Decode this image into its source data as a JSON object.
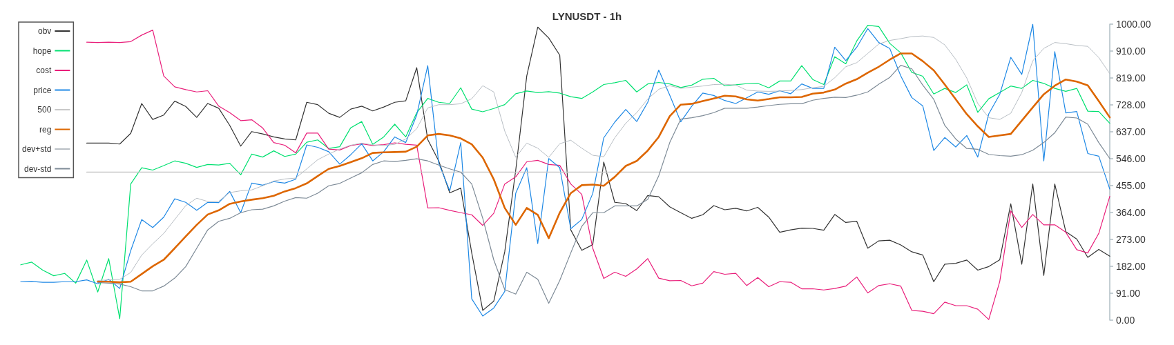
{
  "chart_data": {
    "type": "line",
    "title": "LYNUSDT - 1h",
    "categories": [
      null,
      null,
      null,
      null,
      null,
      null,
      null,
      null,
      null,
      null,
      null,
      null,
      null,
      null,
      null,
      null,
      null,
      null,
      null,
      null,
      null,
      null,
      null,
      null,
      null,
      null,
      null,
      null,
      null,
      null,
      null,
      null,
      null,
      null,
      null,
      null,
      null,
      null,
      null,
      null,
      null,
      null,
      null,
      null,
      null,
      null,
      null,
      null,
      null,
      null,
      null,
      null,
      null,
      null,
      null,
      null,
      null,
      null,
      null,
      null,
      null,
      null,
      null,
      null,
      null,
      null,
      null,
      null,
      null,
      null,
      null,
      null,
      null,
      null,
      null,
      null,
      null,
      null,
      null,
      null,
      null,
      null,
      null,
      null,
      null,
      null,
      null,
      null,
      null,
      null,
      null,
      null,
      null,
      null,
      null,
      null,
      null,
      null,
      null,
      null
    ],
    "series": [
      {
        "name": "obv",
        "color": "#333333",
        "values": [
          null,
          null,
          null,
          null,
          null,
          null,
          598,
          598,
          598,
          595,
          631,
          732,
          678,
          693,
          740,
          722,
          685,
          732,
          716,
          658,
          588,
          637,
          629,
          619,
          612,
          609,
          736,
          728,
          699,
          685,
          713,
          723,
          707,
          720,
          736,
          741,
          853,
          610,
          538,
          430,
          446,
          227,
          33,
          64,
          231,
          507,
          825,
          990,
          953,
          895,
          305,
          236,
          255,
          534,
          398,
          394,
          370,
          421,
          417,
          383,
          363,
          344,
          356,
          387,
          373,
          378,
          369,
          381,
          348,
          297,
          305,
          311,
          310,
          304,
          357,
          330,
          334,
          243,
          268,
          270,
          254,
          231,
          220,
          130,
          189,
          192,
          203,
          169,
          181,
          204,
          393,
          189,
          460,
          151,
          460,
          299,
          274,
          212,
          239,
          216
        ]
      },
      {
        "name": "hope",
        "color": "#00e070",
        "values": [
          187,
          196,
          169,
          150,
          158,
          125,
          203,
          95,
          208,
          5,
          460,
          515,
          507,
          522,
          538,
          530,
          516,
          526,
          524,
          530,
          491,
          561,
          551,
          572,
          553,
          561,
          601,
          609,
          580,
          586,
          650,
          671,
          594,
          619,
          662,
          619,
          701,
          749,
          736,
          732,
          785,
          713,
          704,
          715,
          728,
          765,
          774,
          769,
          772,
          767,
          755,
          749,
          771,
          796,
          802,
          810,
          771,
          798,
          803,
          798,
          786,
          794,
          814,
          817,
          792,
          795,
          799,
          800,
          785,
          808,
          808,
          860,
          813,
          796,
          890,
          866,
          943,
          996,
          992,
          935,
          903,
          837,
          824,
          764,
          783,
          769,
          795,
          702,
          748,
          769,
          791,
          783,
          810,
          800,
          783,
          773,
          783,
          706,
          705,
          665
        ]
      },
      {
        "name": "cost",
        "color": "#e91e7a",
        "values": [
          null,
          null,
          null,
          null,
          null,
          null,
          939,
          938,
          939,
          938,
          941,
          963,
          980,
          825,
          788,
          779,
          771,
          775,
          723,
          701,
          674,
          677,
          649,
          600,
          591,
          565,
          632,
          632,
          578,
          575,
          590,
          596,
          590,
          593,
          599,
          594,
          591,
          379,
          380,
          371,
          363,
          356,
          320,
          361,
          460,
          484,
          535,
          540,
          526,
          523,
          460,
          425,
          243,
          141,
          162,
          148,
          173,
          208,
          142,
          133,
          134,
          116,
          125,
          164,
          155,
          158,
          117,
          144,
          113,
          130,
          128,
          106,
          106,
          102,
          107,
          115,
          146,
          92,
          117,
          123,
          115,
          33,
          30,
          22,
          61,
          49,
          49,
          37,
          2,
          131,
          369,
          313,
          357,
          322,
          322,
          297,
          238,
          227,
          293,
          418
        ]
      },
      {
        "name": "price",
        "color": "#1e88e5",
        "values": [
          130,
          131,
          128,
          128,
          130,
          130,
          136,
          123,
          138,
          107,
          235,
          340,
          313,
          348,
          410,
          398,
          371,
          398,
          397,
          435,
          363,
          463,
          456,
          468,
          463,
          476,
          592,
          584,
          569,
          527,
          559,
          596,
          538,
          569,
          619,
          600,
          693,
          860,
          530,
          437,
          600,
          72,
          14,
          41,
          97,
          429,
          515,
          259,
          546,
          515,
          309,
          340,
          428,
          616,
          669,
          712,
          671,
          736,
          845,
          760,
          670,
          723,
          767,
          759,
          742,
          732,
          751,
          771,
          763,
          775,
          765,
          798,
          783,
          783,
          922,
          877,
          922,
          985,
          938,
          918,
          825,
          752,
          724,
          573,
          617,
          585,
          624,
          551,
          697,
          763,
          888,
          830,
          1000,
          538,
          907,
          700,
          705,
          563,
          554,
          443
        ]
      },
      {
        "name": "500",
        "color": "#c8c8c8",
        "values": [
          null,
          null,
          null,
          null,
          null,
          null,
          500,
          500,
          500,
          500,
          500,
          500,
          500,
          500,
          500,
          500,
          500,
          500,
          500,
          500,
          500,
          500,
          500,
          500,
          500,
          500,
          500,
          500,
          500,
          500,
          500,
          500,
          500,
          500,
          500,
          500,
          500,
          500,
          500,
          500,
          500,
          500,
          500,
          500,
          500,
          500,
          500,
          500,
          500,
          500,
          500,
          500,
          500,
          500,
          500,
          500,
          500,
          500,
          500,
          500,
          500,
          500,
          500,
          500,
          500,
          500,
          500,
          500,
          500,
          500,
          500,
          500,
          500,
          500,
          500,
          500,
          500,
          500,
          500,
          500,
          500,
          500,
          500,
          500,
          500,
          500,
          500,
          500,
          500,
          500,
          500,
          500,
          500,
          500,
          500,
          500,
          500,
          500,
          500,
          500
        ]
      },
      {
        "name": "reg",
        "color": "#dd6600",
        "values": [
          null,
          null,
          null,
          null,
          null,
          null,
          null,
          130,
          130,
          128,
          130,
          156,
          182,
          204,
          243,
          283,
          322,
          357,
          371,
          393,
          401,
          407,
          412,
          420,
          435,
          446,
          462,
          487,
          511,
          521,
          534,
          547,
          565,
          567,
          568,
          569,
          586,
          624,
          629,
          624,
          614,
          594,
          549,
          476,
          379,
          322,
          379,
          356,
          277,
          363,
          429,
          456,
          458,
          454,
          484,
          521,
          538,
          573,
          619,
          689,
          728,
          731,
          740,
          749,
          758,
          756,
          746,
          742,
          747,
          753,
          753,
          754,
          765,
          769,
          779,
          799,
          814,
          836,
          856,
          880,
          901,
          901,
          875,
          844,
          796,
          746,
          696,
          655,
          619,
          624,
          629,
          674,
          719,
          763,
          792,
          813,
          806,
          793,
          740,
          685
        ]
      },
      {
        "name": "dev+std",
        "color": "#b8bec4",
        "values": [
          null,
          null,
          null,
          null,
          null,
          null,
          null,
          134,
          136,
          138,
          161,
          220,
          258,
          293,
          340,
          387,
          412,
          401,
          402,
          431,
          437,
          440,
          454,
          470,
          477,
          480,
          511,
          542,
          561,
          578,
          591,
          598,
          592,
          590,
          594,
          612,
          647,
          717,
          728,
          728,
          731,
          748,
          792,
          771,
          639,
          550,
          598,
          581,
          550,
          596,
          608,
          581,
          557,
          552,
          616,
          665,
          701,
          747,
          780,
          792,
          783,
          787,
          791,
          796,
          797,
          794,
          777,
          774,
          773,
          774,
          776,
          779,
          785,
          790,
          819,
          856,
          870,
          901,
          933,
          945,
          951,
          958,
          960,
          955,
          930,
          881,
          818,
          732,
          684,
          678,
          699,
          769,
          876,
          918,
          938,
          934,
          928,
          925,
          887,
          833
        ]
      },
      {
        "name": "dev-std",
        "color": "#7d8a96",
        "values": [
          null,
          null,
          null,
          null,
          null,
          null,
          null,
          127,
          125,
          122,
          113,
          99,
          99,
          115,
          142,
          181,
          243,
          305,
          334,
          344,
          363,
          373,
          375,
          386,
          402,
          414,
          412,
          429,
          454,
          462,
          480,
          498,
          526,
          538,
          536,
          540,
          545,
          538,
          524,
          511,
          500,
          460,
          344,
          204,
          103,
          88,
          162,
          138,
          57,
          134,
          227,
          317,
          363,
          363,
          386,
          386,
          386,
          408,
          488,
          600,
          679,
          684,
          691,
          701,
          716,
          716,
          716,
          720,
          725,
          729,
          731,
          731,
          743,
          749,
          753,
          752,
          760,
          771,
          797,
          820,
          861,
          849,
          794,
          746,
          658,
          612,
          580,
          577,
          560,
          556,
          554,
          559,
          574,
          600,
          633,
          686,
          683,
          662,
          600,
          546
        ]
      }
    ],
    "ylim": [
      0,
      1000
    ],
    "yticks": [
      {
        "value": 0,
        "label": "0.00"
      },
      {
        "value": 91,
        "label": "91.00"
      },
      {
        "value": 182,
        "label": "182.00"
      },
      {
        "value": 273,
        "label": "273.00"
      },
      {
        "value": 364,
        "label": "364.00"
      },
      {
        "value": 455,
        "label": "455.00"
      },
      {
        "value": 546,
        "label": "546.00"
      },
      {
        "value": 637,
        "label": "637.00"
      },
      {
        "value": 728,
        "label": "728.00"
      },
      {
        "value": 819,
        "label": "819.00"
      },
      {
        "value": 910,
        "label": "910.00"
      },
      {
        "value": 1000,
        "label": "1000.00"
      }
    ],
    "legend": "top left",
    "marker": "none",
    "tick_labels": "y"
  }
}
